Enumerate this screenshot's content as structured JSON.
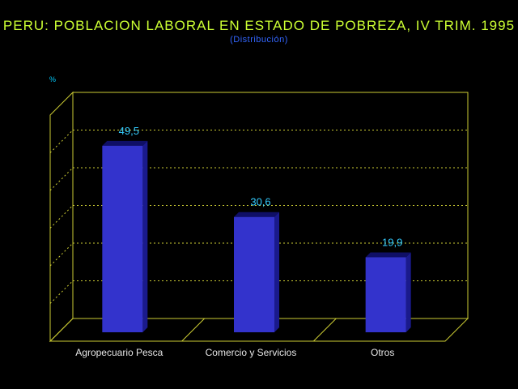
{
  "title": "PERU: POBLACION LABORAL EN ESTADO DE POBREZA, IV TRIM. 1995",
  "subtitle": "(Distribución)",
  "colors": {
    "title": "#ccff33",
    "subtitle": "#3366ff",
    "frame": "#cccc33",
    "bar_front": "#3333cc",
    "bar_side": "#1a1a8c",
    "bar_top": "#0f0f66",
    "value_label": "#33ccff",
    "category_label": "#e6e6e6"
  },
  "chart_data": {
    "type": "bar",
    "title": "PERU: POBLACION LABORAL EN ESTADO DE POBREZA, IV TRIM. 1995",
    "subtitle": "(Distribución)",
    "ylabel": "%",
    "xlabel": "",
    "categories": [
      "Agropecuario Pesca",
      "Comercio y Servicios",
      "Otros"
    ],
    "values": [
      49.5,
      30.6,
      19.9
    ],
    "value_labels": [
      "49,5",
      "30,6",
      "19,9"
    ],
    "ylim": [
      0,
      60
    ],
    "grid": true,
    "legend": "none",
    "three_d": true
  }
}
